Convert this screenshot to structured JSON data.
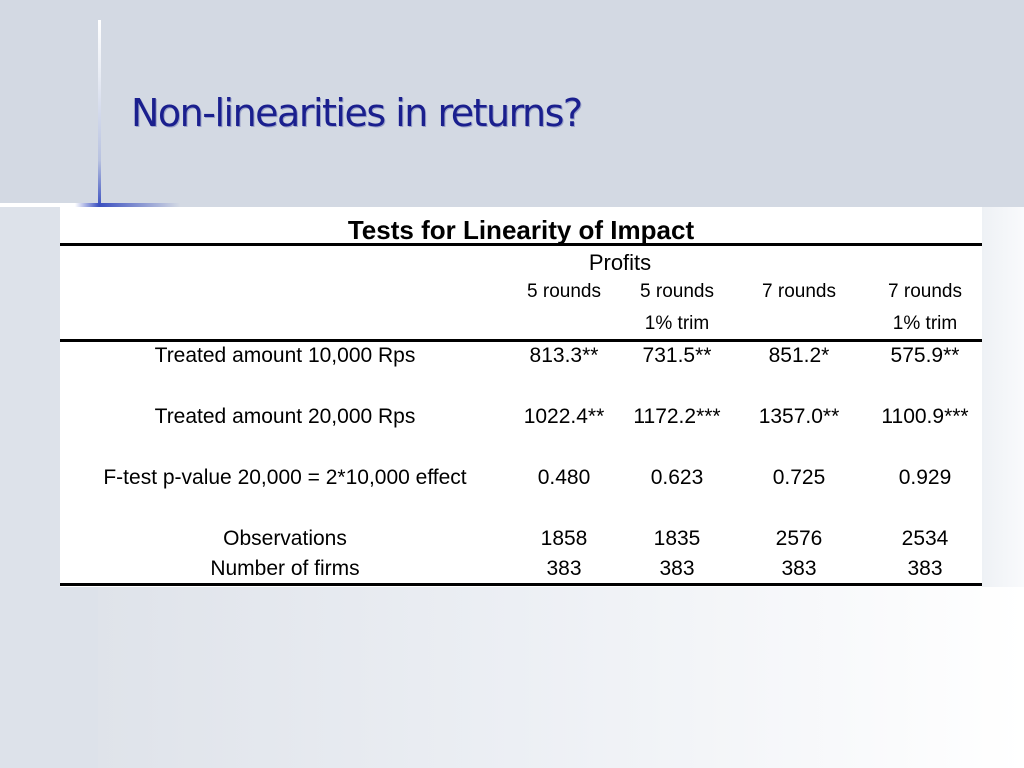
{
  "slide": {
    "title": "Non-linearities in returns?"
  },
  "table": {
    "title": "Tests for Linearity of Impact",
    "group_header": "Profits",
    "columns": [
      {
        "label": "5 rounds",
        "sub": ""
      },
      {
        "label": "5 rounds",
        "sub": "1% trim"
      },
      {
        "label": "7 rounds",
        "sub": ""
      },
      {
        "label": "7 rounds",
        "sub": "1% trim"
      }
    ],
    "rows": [
      {
        "label": "Treated amount 10,000 Rps",
        "values": [
          "813.3**",
          "731.5**",
          "851.2*",
          "575.9**"
        ]
      },
      {
        "label": "Treated amount 20,000 Rps",
        "values": [
          "1022.4**",
          "1172.2***",
          "1357.0**",
          "1100.9***"
        ]
      },
      {
        "label": "F-test p-value 20,000 = 2*10,000 effect",
        "values": [
          "0.480",
          "0.623",
          "0.725",
          "0.929"
        ]
      },
      {
        "label": "Observations",
        "values": [
          "1858",
          "1835",
          "2576",
          "2534"
        ]
      },
      {
        "label": "Number of firms",
        "values": [
          "383",
          "383",
          "383",
          "383"
        ]
      }
    ]
  },
  "colors": {
    "title": "#1a1f8e",
    "header_band": "#d3d9e3",
    "accent": "#3a4fc0"
  }
}
